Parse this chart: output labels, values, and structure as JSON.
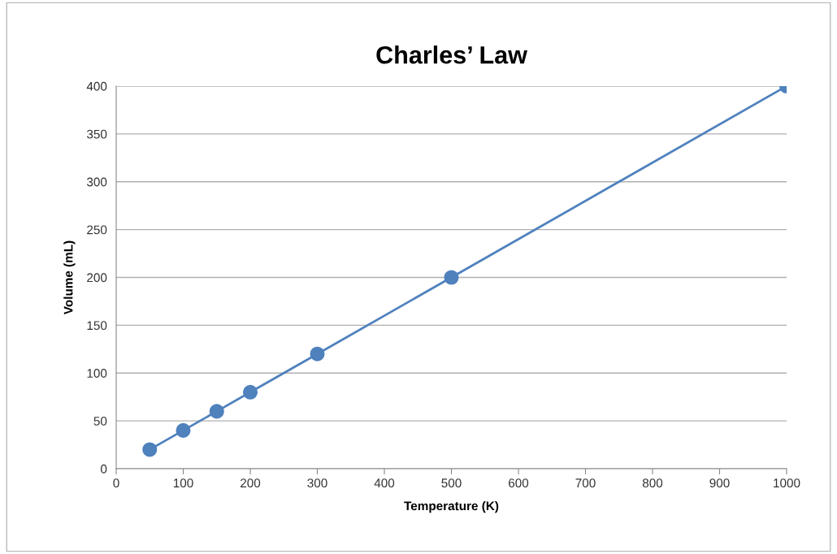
{
  "chart_data": {
    "type": "line",
    "title": "Charles’ Law",
    "xlabel": "Temperature (K)",
    "ylabel": "Volume (mL)",
    "x": [
      50,
      100,
      150,
      200,
      300,
      500,
      1000
    ],
    "series": [
      {
        "color": "#4f81bd",
        "values": [
          20,
          40,
          60,
          80,
          120,
          200,
          400
        ]
      }
    ],
    "xlim": [
      0,
      1000
    ],
    "xticks": [
      0,
      100,
      200,
      300,
      400,
      500,
      600,
      700,
      800,
      900,
      1000
    ],
    "ylim": [
      0,
      400
    ],
    "yticks": [
      0,
      50,
      100,
      150,
      200,
      250,
      300,
      350,
      400
    ],
    "grid": "y",
    "marker": "circle",
    "line_style": "solid",
    "legend": false
  }
}
